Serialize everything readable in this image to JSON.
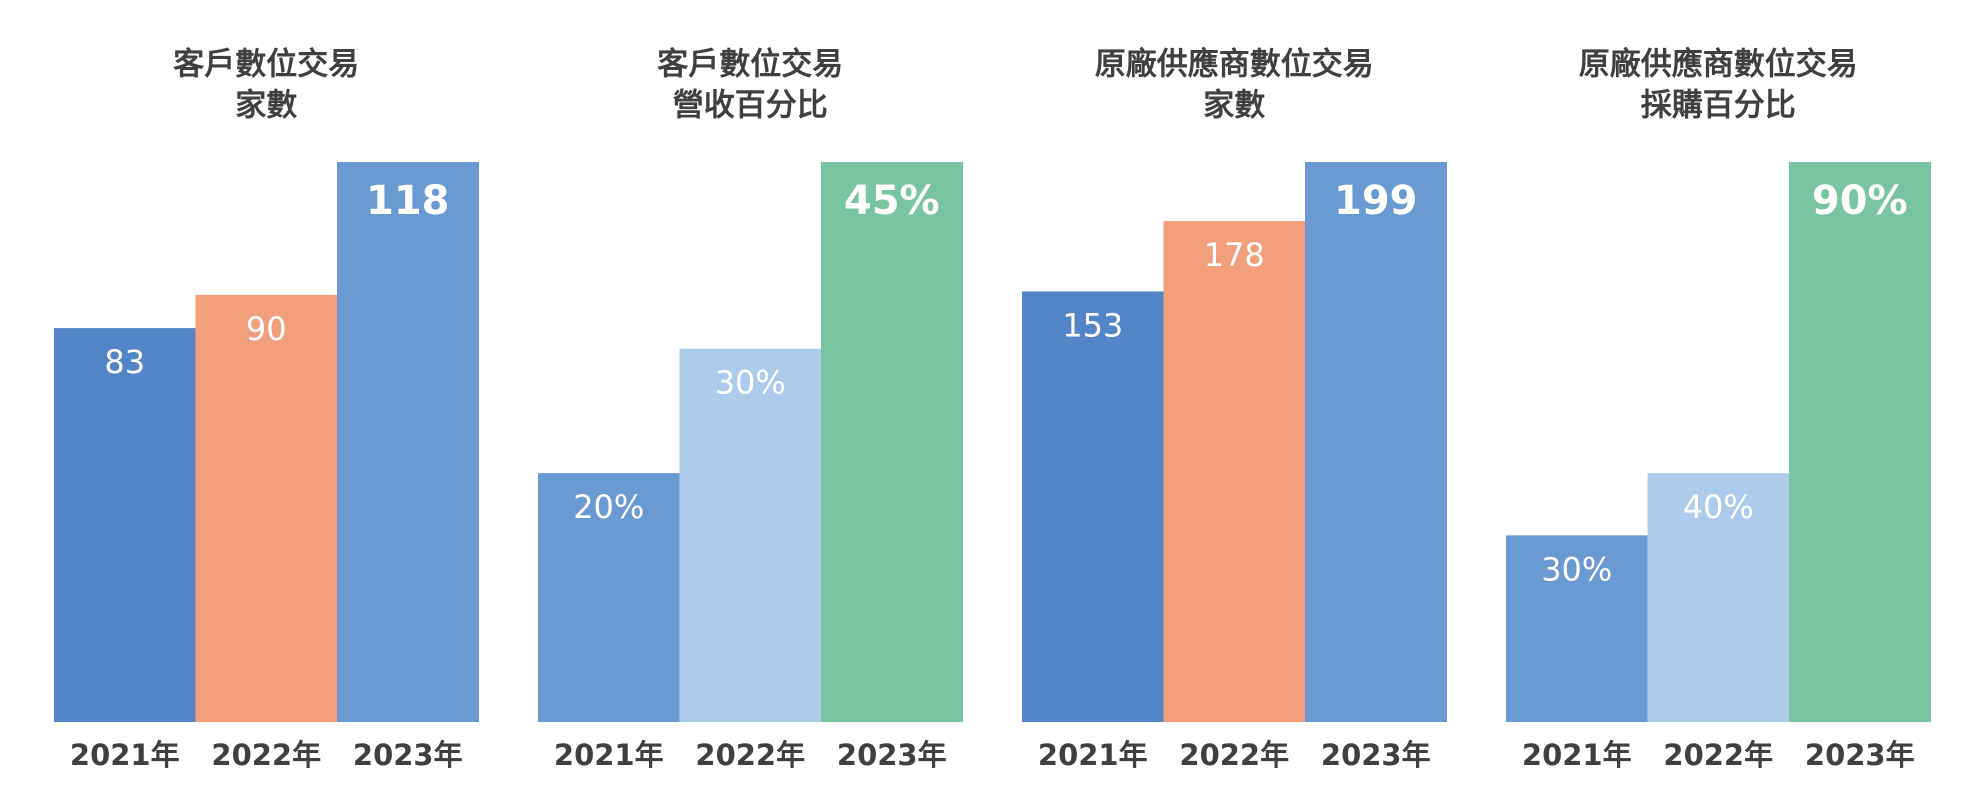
{
  "chart_data": [
    {
      "type": "bar",
      "title_lines": [
        "客戶數位交易",
        "家數"
      ],
      "categories": [
        "2021年",
        "2022年",
        "2023年"
      ],
      "values": [
        83,
        90,
        118
      ],
      "value_labels": [
        "83",
        "90",
        "118"
      ],
      "colors": [
        "#5386c6",
        "#f2a07b",
        "#6a9ad2"
      ],
      "ylim": [
        0,
        118
      ],
      "bold_last_label": true
    },
    {
      "type": "bar",
      "title_lines": [
        "客戶數位交易",
        "營收百分比"
      ],
      "categories": [
        "2021年",
        "2022年",
        "2023年"
      ],
      "values": [
        20,
        30,
        45
      ],
      "value_labels": [
        "20%",
        "30%",
        "45%"
      ],
      "colors": [
        "#6a9ad2",
        "#adcbec",
        "#79c4a1"
      ],
      "ylim": [
        0,
        45
      ],
      "bold_last_label": true
    },
    {
      "type": "bar",
      "title_lines": [
        "原廠供應商數位交易",
        "家數"
      ],
      "categories": [
        "2021年",
        "2022年",
        "2023年"
      ],
      "values": [
        153,
        178,
        199
      ],
      "value_labels": [
        "153",
        "178",
        "199"
      ],
      "colors": [
        "#5386c6",
        "#f2a07b",
        "#6a9ad2"
      ],
      "ylim": [
        0,
        199
      ],
      "bold_last_label": true
    },
    {
      "type": "bar",
      "title_lines": [
        "原廠供應商數位交易",
        "採購百分比"
      ],
      "categories": [
        "2021年",
        "2022年",
        "2023年"
      ],
      "values": [
        30,
        40,
        90
      ],
      "value_labels": [
        "30%",
        "40%",
        "90%"
      ],
      "colors": [
        "#6a9ad2",
        "#adcbec",
        "#79c4a1"
      ],
      "ylim": [
        0,
        90
      ],
      "bold_last_label": true
    }
  ]
}
